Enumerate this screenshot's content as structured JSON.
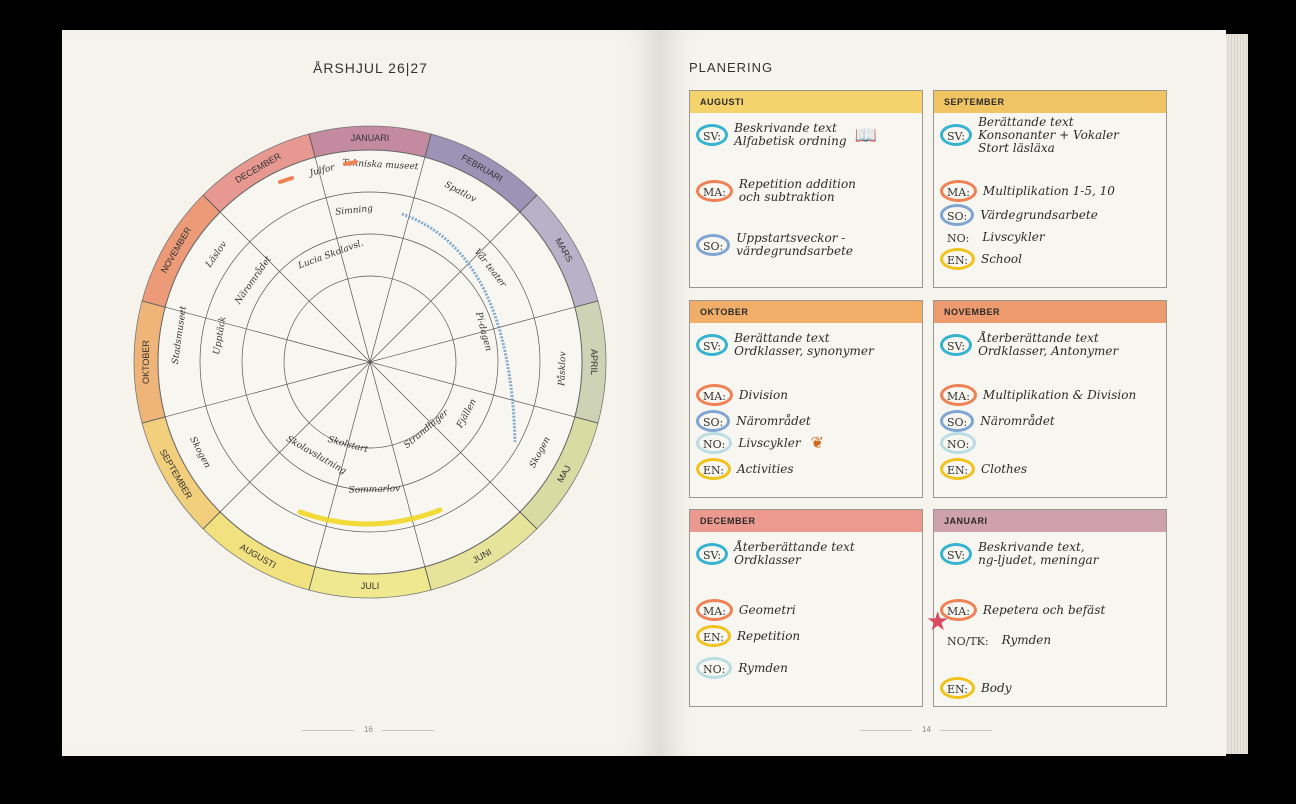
{
  "left_page": {
    "title": "ÅRSHJUL 26|27",
    "page_number": "16",
    "wheel": {
      "months": [
        {
          "label": "JANUARI",
          "color": "#c48ba0"
        },
        {
          "label": "FEBRUARI",
          "color": "#9c93b6"
        },
        {
          "label": "MARS",
          "color": "#b8b2c9"
        },
        {
          "label": "APRIL",
          "color": "#cdd3b4"
        },
        {
          "label": "MAJ",
          "color": "#d9dca2"
        },
        {
          "label": "JUNI",
          "color": "#e6e39a"
        },
        {
          "label": "JULI",
          "color": "#f0e88e"
        },
        {
          "label": "AUGUSTI",
          "color": "#f1e27f"
        },
        {
          "label": "SEPTEMBER",
          "color": "#f1cf7c"
        },
        {
          "label": "OKTOBER",
          "color": "#efb478"
        },
        {
          "label": "NOVEMBER",
          "color": "#ec9a78"
        },
        {
          "label": "DECEMBER",
          "color": "#e79891"
        }
      ],
      "handwriting": [
        "Julfor",
        "Tekniska museet",
        "Spatlov",
        "Simning",
        "Vår teater",
        "Lucia Skolavsl.",
        "Pi-dagen",
        "Påsklov",
        "Läslov",
        "Närområdet",
        "Upptäck",
        "Stadsmuseet",
        "Skolavslutning",
        "Skolstart",
        "Fjällen",
        "Strandläger",
        "Sommarlov",
        "Skogen",
        "Skogen"
      ]
    }
  },
  "right_page": {
    "title": "PLANERING",
    "page_number": "14",
    "months": [
      {
        "name": "AUGUSTI",
        "header_color": "#f4d36c",
        "rows": [
          {
            "tag": "SV:",
            "ring": "#36b3d0",
            "text": "Beskrivande text\nAlfabetisk ordning",
            "icon": "book-icon"
          },
          {
            "tag": "MA:",
            "ring": "#ef8154",
            "text": "Repetition addition\noch subtraktion"
          },
          {
            "tag": "SO:",
            "ring": "#7fa6d3",
            "text": "Uppstartsveckor -\nvärdegrundsarbete"
          }
        ]
      },
      {
        "name": "SEPTEMBER",
        "header_color": "#f1c463",
        "rows": [
          {
            "tag": "SV:",
            "ring": "#36b3d0",
            "text": "Berättande text\nKonsonanter + Vokaler\nStort läsläxa"
          },
          {
            "tag": "MA:",
            "ring": "#ef8154",
            "text": "Multiplikation 1-5, 10"
          },
          {
            "tag": "SO:",
            "ring": "#7fa6d3",
            "text": "Värdegrundsarbete"
          },
          {
            "tag": "NO:",
            "ring": "transparent",
            "text": "Livscykler"
          },
          {
            "tag": "EN:",
            "ring": "#f0c21b",
            "text": "School"
          }
        ]
      },
      {
        "name": "OKTOBER",
        "header_color": "#f0ae68",
        "rows": [
          {
            "tag": "SV:",
            "ring": "#36b3d0",
            "text": "Berättande text\nOrdklasser, synonymer"
          },
          {
            "tag": "MA:",
            "ring": "#ef8154",
            "text": "Division"
          },
          {
            "tag": "SO:",
            "ring": "#7fa6d3",
            "text": "Närområdet"
          },
          {
            "tag": "NO:",
            "ring": "#b9dde3",
            "text": "Livscykler",
            "icon": "leaf-icon"
          },
          {
            "tag": "EN:",
            "ring": "#f0c21b",
            "text": "Activities"
          }
        ]
      },
      {
        "name": "NOVEMBER",
        "header_color": "#ec9a6e",
        "rows": [
          {
            "tag": "SV:",
            "ring": "#36b3d0",
            "text": "Återberättande text\nOrdklasser, Antonymer"
          },
          {
            "tag": "MA:",
            "ring": "#ef8154",
            "text": "Multiplikation & Division"
          },
          {
            "tag": "SO:",
            "ring": "#7fa6d3",
            "text": "Närområdet"
          },
          {
            "tag": "NO:",
            "ring": "#b9dde3",
            "text": ""
          },
          {
            "tag": "EN:",
            "ring": "#f0c21b",
            "text": "Clothes"
          }
        ]
      },
      {
        "name": "DECEMBER",
        "header_color": "#ec9a8f",
        "rows": [
          {
            "tag": "SV:",
            "ring": "#36b3d0",
            "text": "Återberättande text\nOrdklasser"
          },
          {
            "tag": "MA:",
            "ring": "#ef8154",
            "text": "Geometri"
          },
          {
            "tag": "EN:",
            "ring": "#f0c21b",
            "text": "Repetition"
          },
          {
            "tag": "NO:",
            "ring": "#b9dde3",
            "text": "Rymden"
          }
        ]
      },
      {
        "name": "JANUARI",
        "header_color": "#cfa0ad",
        "rows": [
          {
            "tag": "SV:",
            "ring": "#36b3d0",
            "text": "Beskrivande text,\nng-ljudet, meningar"
          },
          {
            "tag": "MA:",
            "ring": "#ef8154",
            "text": "Repetera och befäst"
          },
          {
            "tag": "NO/TK:",
            "ring": "transparent",
            "text": "Rymden",
            "icon": "star-icon"
          },
          {
            "tag": "EN:",
            "ring": "#f0c21b",
            "text": "Body"
          }
        ]
      }
    ]
  }
}
